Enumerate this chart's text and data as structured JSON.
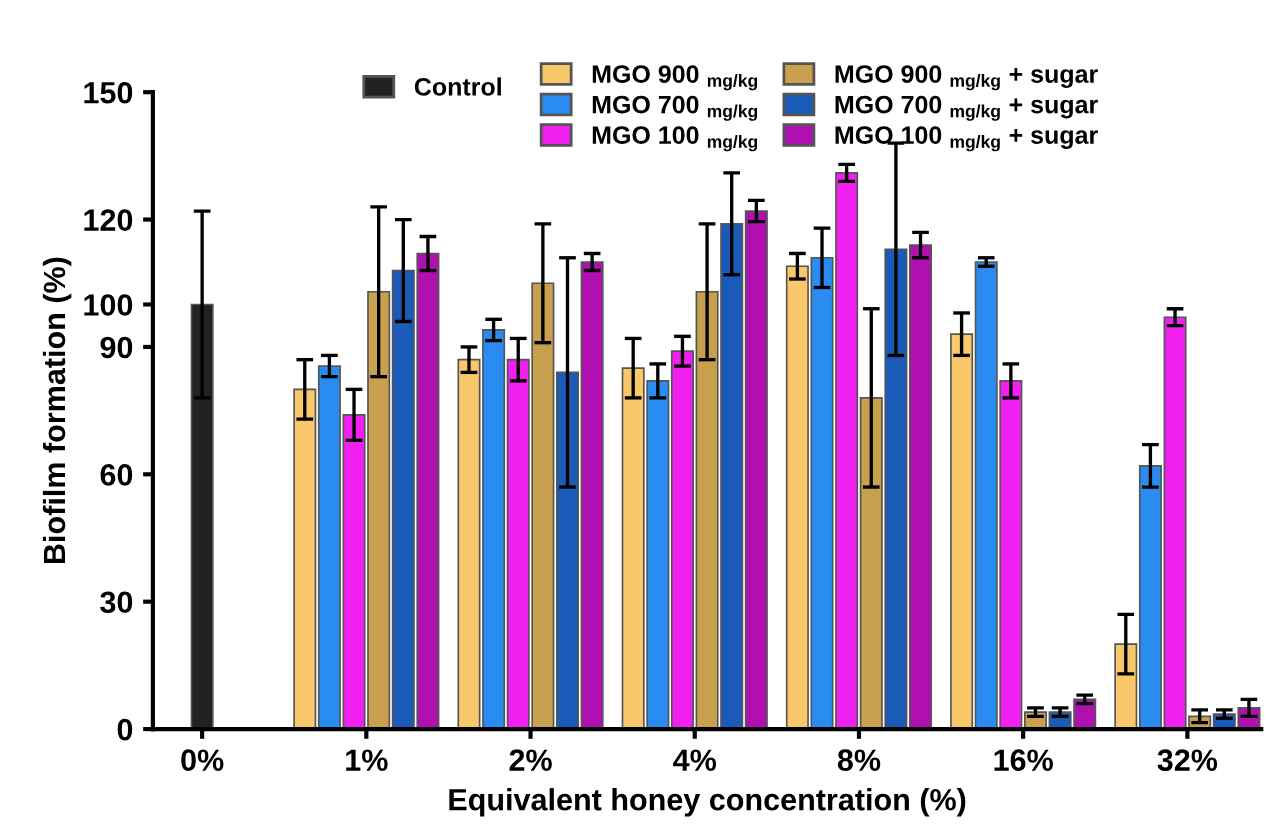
{
  "chart_data": {
    "type": "bar",
    "xlabel": "Equivalent honey concentration (%)",
    "ylabel": "Biofilm formation (%)",
    "categories": [
      "0%",
      "1%",
      "2%",
      "4%",
      "8%",
      "16%",
      "32%"
    ],
    "ylim": [
      0,
      150
    ],
    "yticks": [
      0,
      30,
      60,
      90,
      100,
      120,
      150
    ],
    "grid": false,
    "legend": "top",
    "series": [
      {
        "name": "Control",
        "color": "#222222",
        "values": [
          100,
          null,
          null,
          null,
          null,
          null,
          null
        ],
        "errors": [
          22,
          null,
          null,
          null,
          null,
          null,
          null
        ]
      },
      {
        "name": "MGO 900 $_{mg/kg}$",
        "color": "#f9c86a",
        "values": [
          null,
          80,
          87,
          85,
          109,
          93,
          20
        ],
        "errors": [
          null,
          7,
          3,
          7,
          3,
          5,
          7
        ]
      },
      {
        "name": "MGO 700 $_{mg/kg}$",
        "color": "#2a8cf0",
        "values": [
          null,
          85.5,
          94,
          82,
          111,
          110,
          62
        ],
        "errors": [
          null,
          2.5,
          2.5,
          4,
          7,
          1,
          5
        ]
      },
      {
        "name": "MGO 100 $_{mg/kg}$",
        "color": "#f020f0",
        "values": [
          null,
          74,
          87,
          89,
          131,
          82,
          97
        ],
        "errors": [
          null,
          6,
          5,
          3.5,
          2,
          4,
          2
        ]
      },
      {
        "name": "MGO 900 $_{mg/kg}$ + sugar",
        "color": "#c9a04e",
        "values": [
          null,
          103,
          105,
          103,
          78,
          4,
          3
        ],
        "errors": [
          null,
          20,
          14,
          16,
          21,
          1,
          1.5
        ]
      },
      {
        "name": "MGO 700 $_{mg/kg}$ + sugar",
        "color": "#1a5ab8",
        "values": [
          null,
          108,
          84,
          119,
          113,
          4,
          3.5
        ],
        "errors": [
          null,
          12,
          27,
          12,
          25,
          1,
          1
        ]
      },
      {
        "name": "MGO 100 $_{mg/kg}$ + sugar",
        "color": "#b010b0",
        "values": [
          null,
          112,
          110,
          122,
          114,
          7,
          5
        ],
        "errors": [
          null,
          4,
          2,
          2.5,
          3,
          1,
          2
        ]
      }
    ]
  }
}
